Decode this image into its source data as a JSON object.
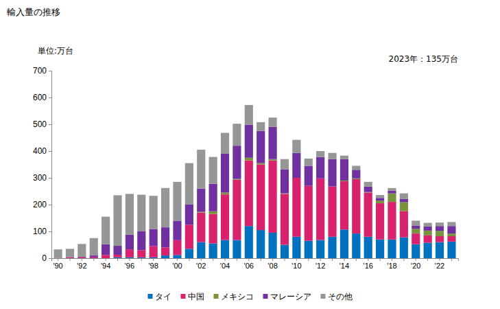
{
  "chart_data": {
    "type": "bar",
    "stacked": true,
    "grid": false,
    "legend": "bottom",
    "title": "輸入量の推移",
    "y_label": "単位:万台",
    "annotation": "2023年：135万台",
    "categories": [
      "'90",
      null,
      "'92",
      null,
      "'94",
      null,
      "'96",
      null,
      "'98",
      null,
      "'00",
      null,
      "'02",
      null,
      "'04",
      null,
      "'06",
      null,
      "'08",
      null,
      "'10",
      null,
      "'12",
      null,
      "'14",
      null,
      "'16",
      null,
      "'18",
      null,
      "'20",
      null,
      "'22",
      null
    ],
    "ylim": [
      0,
      700
    ],
    "yticks": [
      0,
      100,
      200,
      300,
      400,
      500,
      600,
      700
    ],
    "series": [
      {
        "name": "タイ",
        "color": "#0070c0",
        "values": [
          0,
          0,
          0,
          0,
          0,
          3,
          3,
          3,
          3,
          10,
          12,
          35,
          60,
          55,
          68,
          68,
          120,
          105,
          95,
          50,
          80,
          65,
          68,
          80,
          107,
          92,
          80,
          70,
          70,
          78,
          52,
          58,
          60,
          62
        ]
      },
      {
        "name": "中国",
        "color": "#d9226e",
        "values": [
          0,
          3,
          3,
          3,
          12,
          10,
          30,
          27,
          42,
          30,
          55,
          90,
          110,
          110,
          170,
          225,
          245,
          245,
          270,
          190,
          220,
          205,
          230,
          188,
          180,
          203,
          165,
          135,
          140,
          98,
          40,
          27,
          22,
          20
        ]
      },
      {
        "name": "メキシコ",
        "color": "#77933c",
        "values": [
          0,
          0,
          0,
          0,
          0,
          0,
          0,
          0,
          0,
          0,
          0,
          0,
          3,
          10,
          7,
          3,
          10,
          5,
          5,
          2,
          0,
          0,
          0,
          0,
          3,
          3,
          2,
          10,
          32,
          33,
          18,
          18,
          20,
          10
        ]
      },
      {
        "name": "マレーシア",
        "color": "#7030a0",
        "values": [
          1,
          1,
          2,
          7,
          40,
          33,
          55,
          70,
          63,
          75,
          73,
          75,
          87,
          103,
          145,
          124,
          123,
          120,
          120,
          90,
          93,
          75,
          80,
          102,
          80,
          32,
          20,
          10,
          10,
          12,
          12,
          15,
          18,
          28
        ]
      },
      {
        "name": "その他",
        "color": "#969696",
        "values": [
          32,
          31,
          48,
          65,
          103,
          189,
          152,
          137,
          125,
          147,
          145,
          155,
          145,
          100,
          78,
          82,
          74,
          33,
          35,
          38,
          49,
          27,
          22,
          23,
          13,
          15,
          18,
          11,
          10,
          21,
          18,
          14,
          13,
          15
        ]
      }
    ]
  }
}
